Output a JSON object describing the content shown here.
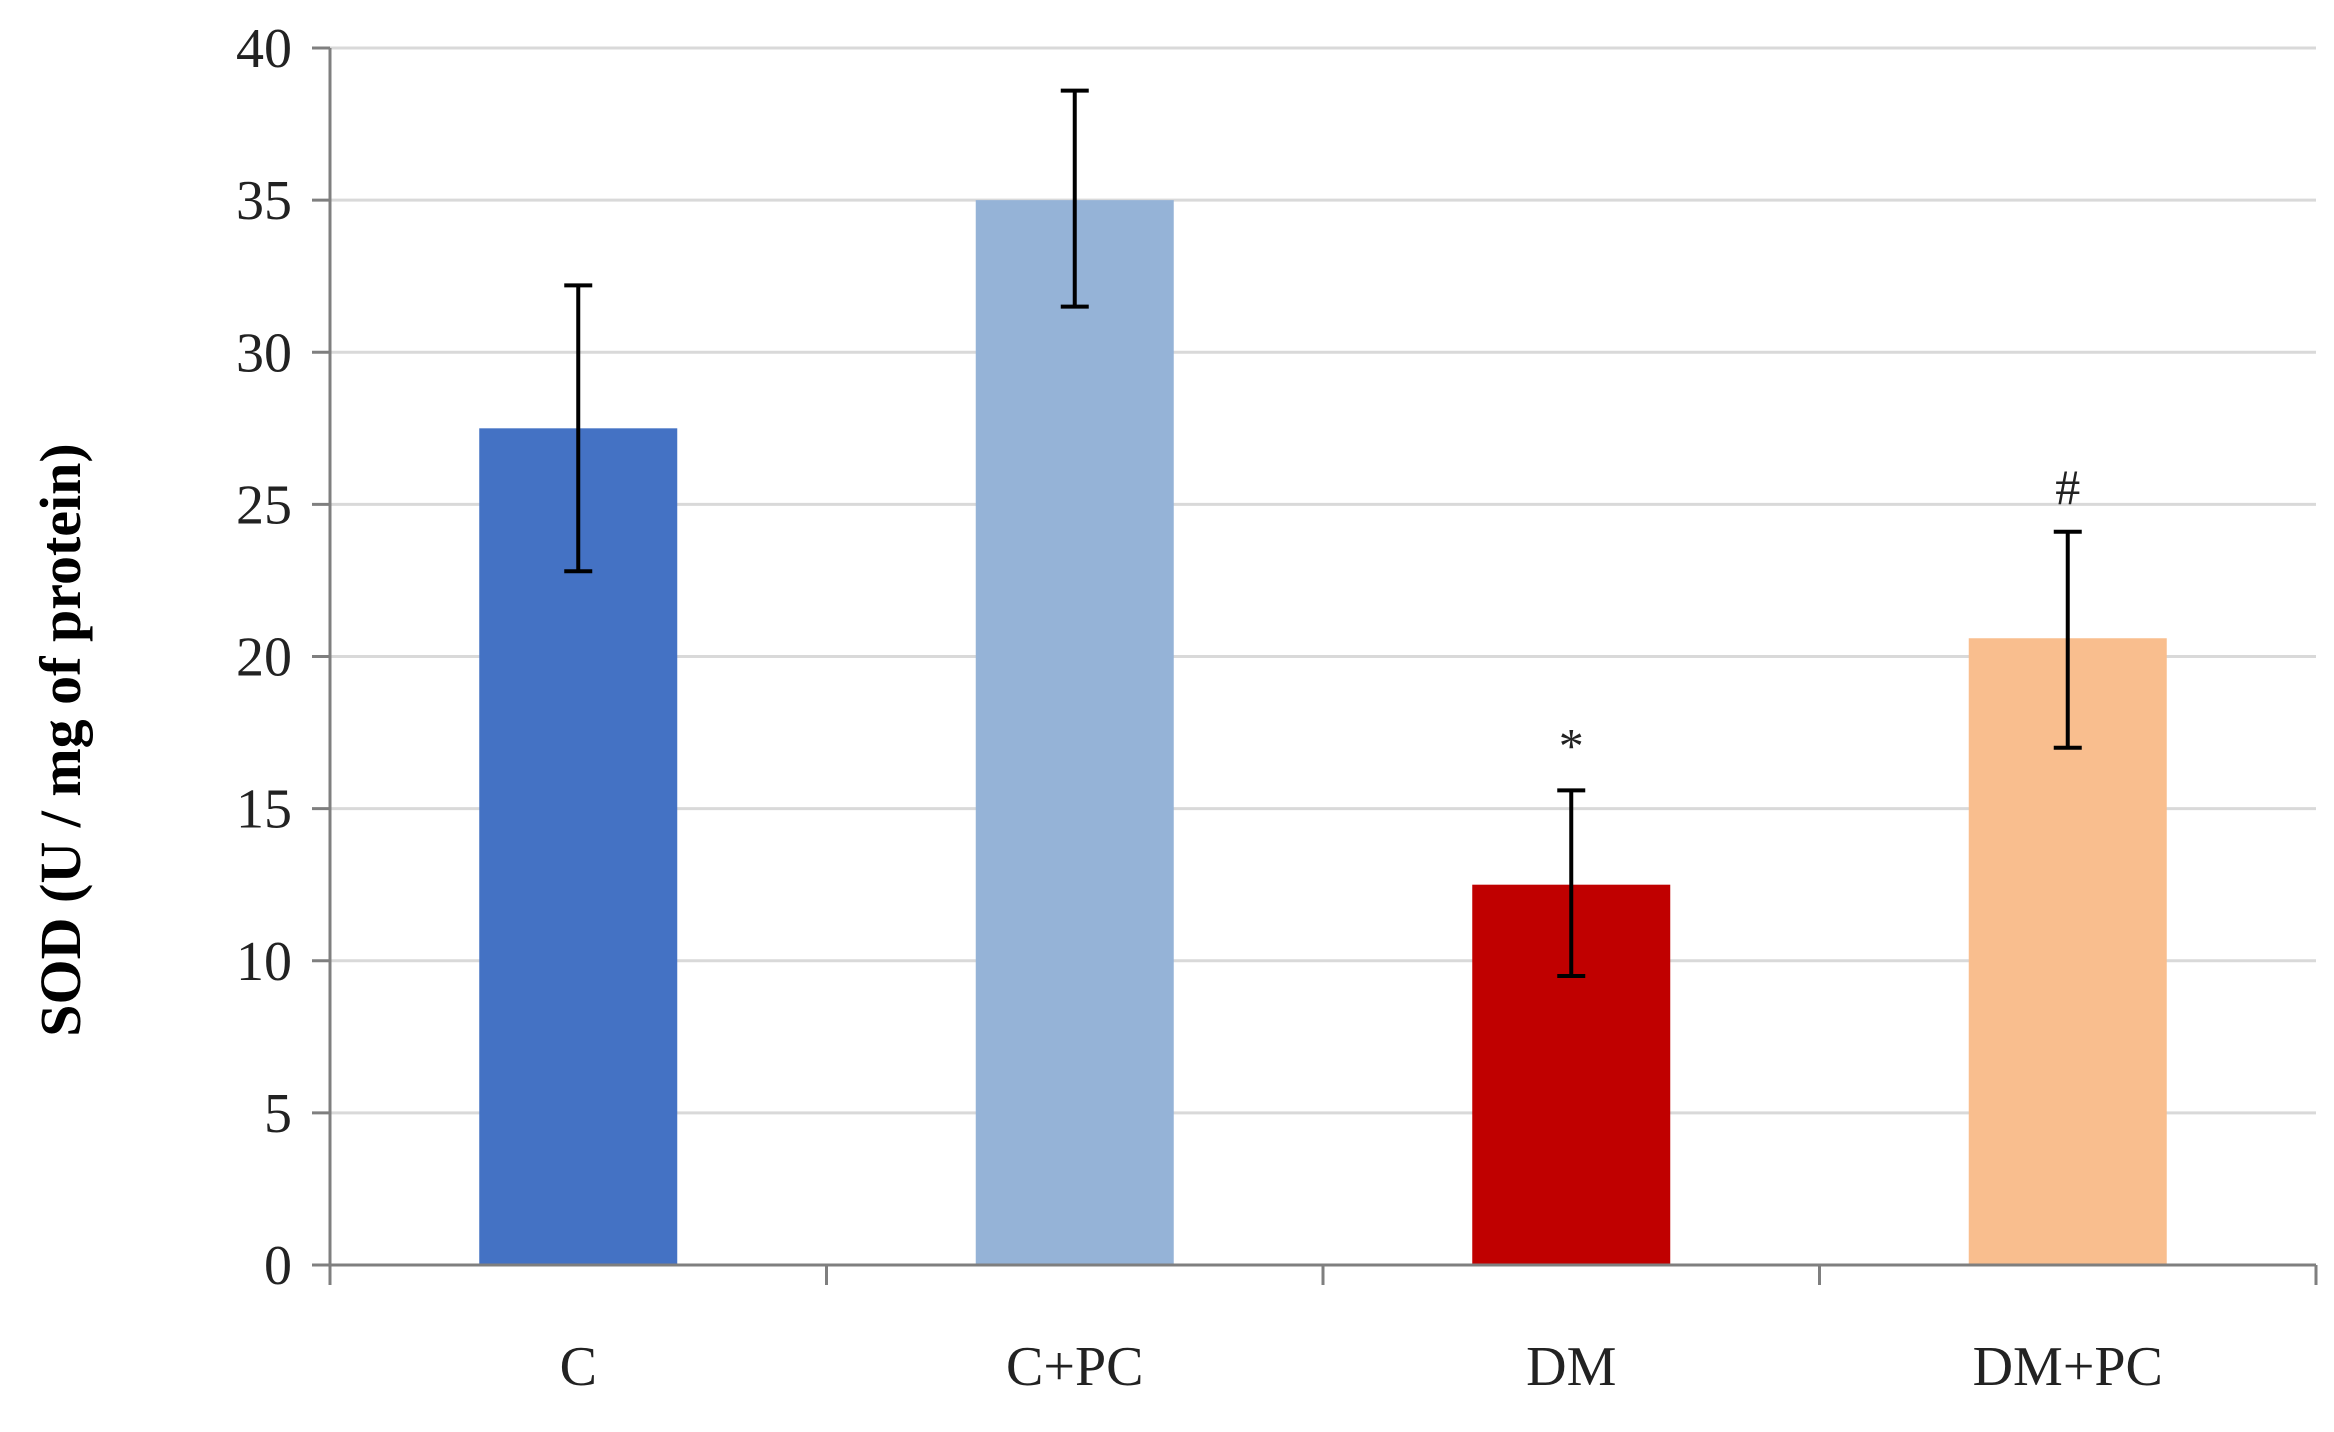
{
  "chart_data": {
    "type": "bar",
    "title": "",
    "xlabel": "",
    "ylabel": "SOD (U / mg of protein)",
    "ylim": [
      0,
      40
    ],
    "yticks": [
      0,
      5,
      10,
      15,
      20,
      25,
      30,
      35,
      40
    ],
    "grid": true,
    "categories": [
      "C",
      "C+PC",
      "DM",
      "DM+PC"
    ],
    "values": [
      27.5,
      35.0,
      12.5,
      20.6
    ],
    "error_low": [
      22.8,
      31.5,
      9.5,
      17.0
    ],
    "error_high": [
      32.2,
      38.6,
      15.6,
      24.1
    ],
    "colors": [
      "#4472C4",
      "#95B3D7",
      "#C00000",
      "#F9BE8E"
    ],
    "annotations": [
      "",
      "",
      "*",
      "#"
    ]
  }
}
